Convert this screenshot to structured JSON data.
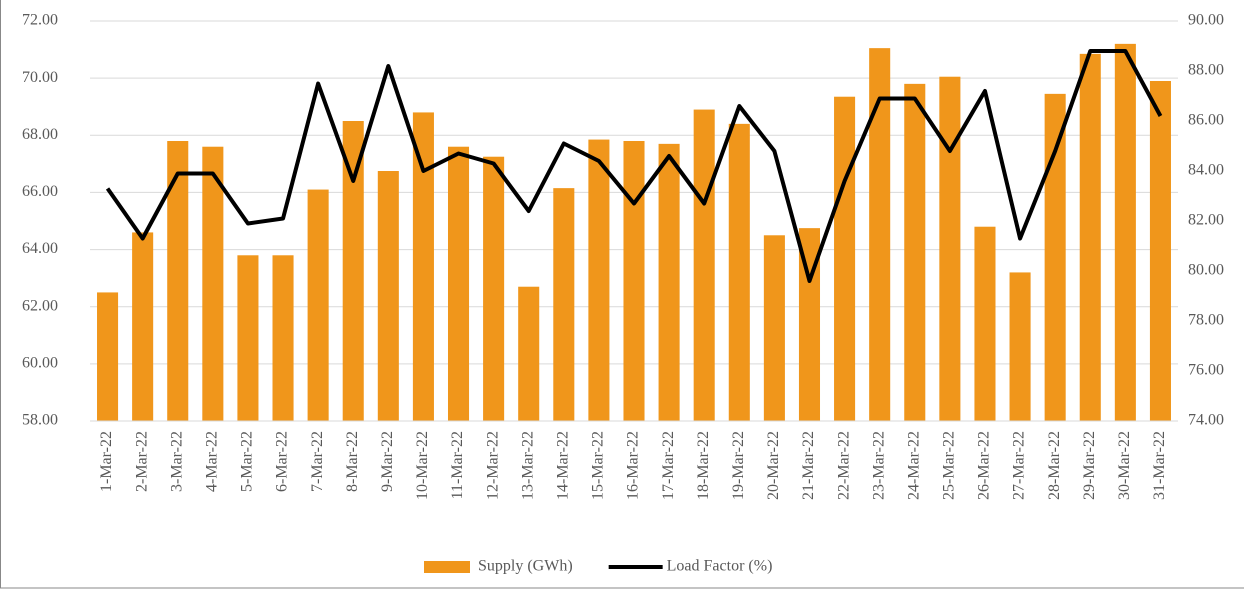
{
  "chart_data": {
    "type": "bar-line",
    "categories": [
      "1-Mar-22",
      "2-Mar-22",
      "3-Mar-22",
      "4-Mar-22",
      "5-Mar-22",
      "6-Mar-22",
      "7-Mar-22",
      "8-Mar-22",
      "9-Mar-22",
      "10-Mar-22",
      "11-Mar-22",
      "12-Mar-22",
      "13-Mar-22",
      "14-Mar-22",
      "15-Mar-22",
      "16-Mar-22",
      "17-Mar-22",
      "18-Mar-22",
      "19-Mar-22",
      "20-Mar-22",
      "21-Mar-22",
      "22-Mar-22",
      "23-Mar-22",
      "24-Mar-22",
      "25-Mar-22",
      "26-Mar-22",
      "27-Mar-22",
      "28-Mar-22",
      "29-Mar-22",
      "30-Mar-22",
      "31-Mar-22"
    ],
    "series": [
      {
        "name": "Supply (GWh)",
        "type": "bar",
        "color": "#f0961b",
        "values": [
          62.5,
          64.6,
          67.8,
          67.6,
          63.8,
          63.8,
          66.1,
          68.5,
          66.75,
          68.8,
          67.6,
          67.25,
          62.7,
          66.15,
          67.85,
          67.8,
          67.7,
          68.9,
          68.4,
          64.5,
          64.75,
          69.35,
          71.05,
          69.8,
          70.05,
          64.8,
          63.2,
          69.45,
          70.85,
          71.2,
          69.9
        ]
      },
      {
        "name": "Load Factor (%)",
        "type": "line",
        "color": "#000000",
        "axis": "y2",
        "values": [
          83.3,
          81.3,
          83.9,
          83.9,
          81.9,
          82.1,
          87.5,
          83.6,
          88.2,
          84.0,
          84.7,
          84.3,
          82.4,
          85.1,
          84.4,
          82.7,
          84.6,
          82.7,
          86.6,
          84.8,
          79.6,
          83.6,
          86.9,
          86.9,
          84.8,
          87.2,
          81.3,
          84.8,
          88.8,
          88.8,
          86.2
        ]
      }
    ],
    "ylim": [
      58,
      72
    ],
    "yticks": [
      {
        "value": 58,
        "label": "58.00"
      },
      {
        "value": 60,
        "label": "60.00"
      },
      {
        "value": 62,
        "label": "62.00"
      },
      {
        "value": 64,
        "label": "64.00"
      },
      {
        "value": 66,
        "label": "66.00"
      },
      {
        "value": 68,
        "label": "68.00"
      },
      {
        "value": 70,
        "label": "70.00"
      },
      {
        "value": 72,
        "label": "72.00"
      }
    ],
    "y2lim": [
      74,
      90
    ],
    "y2ticks": [
      {
        "value": 74,
        "label": "74.00"
      },
      {
        "value": 76,
        "label": "76.00"
      },
      {
        "value": 78,
        "label": "78.00"
      },
      {
        "value": 80,
        "label": "80.00"
      },
      {
        "value": 82,
        "label": "82.00"
      },
      {
        "value": 84,
        "label": "84.00"
      },
      {
        "value": 86,
        "label": "86.00"
      },
      {
        "value": 88,
        "label": "88.00"
      },
      {
        "value": 90,
        "label": "90.00"
      }
    ],
    "grid": true,
    "legend": "bottom"
  }
}
